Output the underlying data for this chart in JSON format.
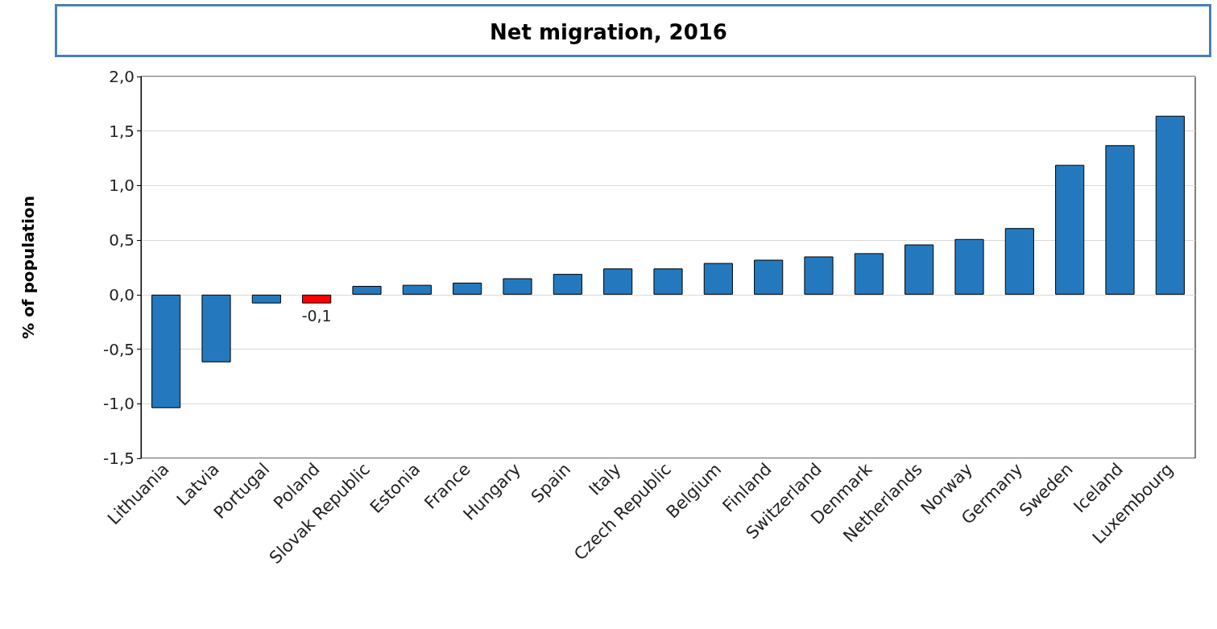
{
  "chart_data": {
    "type": "bar",
    "title": "Net migration, 2016",
    "ylabel": "% of population",
    "categories": [
      "Lithuania",
      "Latvia",
      "Portugal",
      "Poland",
      "Slovak Republic",
      "Estonia",
      "France",
      "Hungary",
      "Spain",
      "Italy",
      "Czech Republic",
      "Belgium",
      "Finland",
      "Switzerland",
      "Denmark",
      "Netherlands",
      "Norway",
      "Germany",
      "Sweden",
      "Iceland",
      "Luxembourg"
    ],
    "values": [
      -1.04,
      -0.62,
      -0.08,
      -0.08,
      0.08,
      0.09,
      0.11,
      0.15,
      0.19,
      0.24,
      0.24,
      0.29,
      0.32,
      0.35,
      0.38,
      0.46,
      0.51,
      0.61,
      1.19,
      1.37,
      1.64
    ],
    "colors": [
      "#2479be",
      "#2479be",
      "#2479be",
      "#ff0000",
      "#2479be",
      "#2479be",
      "#2479be",
      "#2479be",
      "#2479be",
      "#2479be",
      "#2479be",
      "#2479be",
      "#2479be",
      "#2479be",
      "#2479be",
      "#2479be",
      "#2479be",
      "#2479be",
      "#2479be",
      "#2479be",
      "#2479be"
    ],
    "value_labels": [
      null,
      null,
      null,
      "-0,1",
      null,
      null,
      null,
      null,
      null,
      null,
      null,
      null,
      null,
      null,
      null,
      null,
      null,
      null,
      null,
      null,
      null
    ],
    "ylim": [
      -1.5,
      2
    ],
    "yticks": [
      {
        "value": -1.5,
        "label": "-1,5"
      },
      {
        "value": -1,
        "label": "-1,0"
      },
      {
        "value": -0.5,
        "label": "-0,5"
      },
      {
        "value": 0,
        "label": "0,0"
      },
      {
        "value": 0.5,
        "label": "0,5"
      },
      {
        "value": 1,
        "label": "1,0"
      },
      {
        "value": 1.5,
        "label": "1,5"
      },
      {
        "value": 2,
        "label": "2,0"
      }
    ],
    "grid": "y",
    "legend": false
  }
}
